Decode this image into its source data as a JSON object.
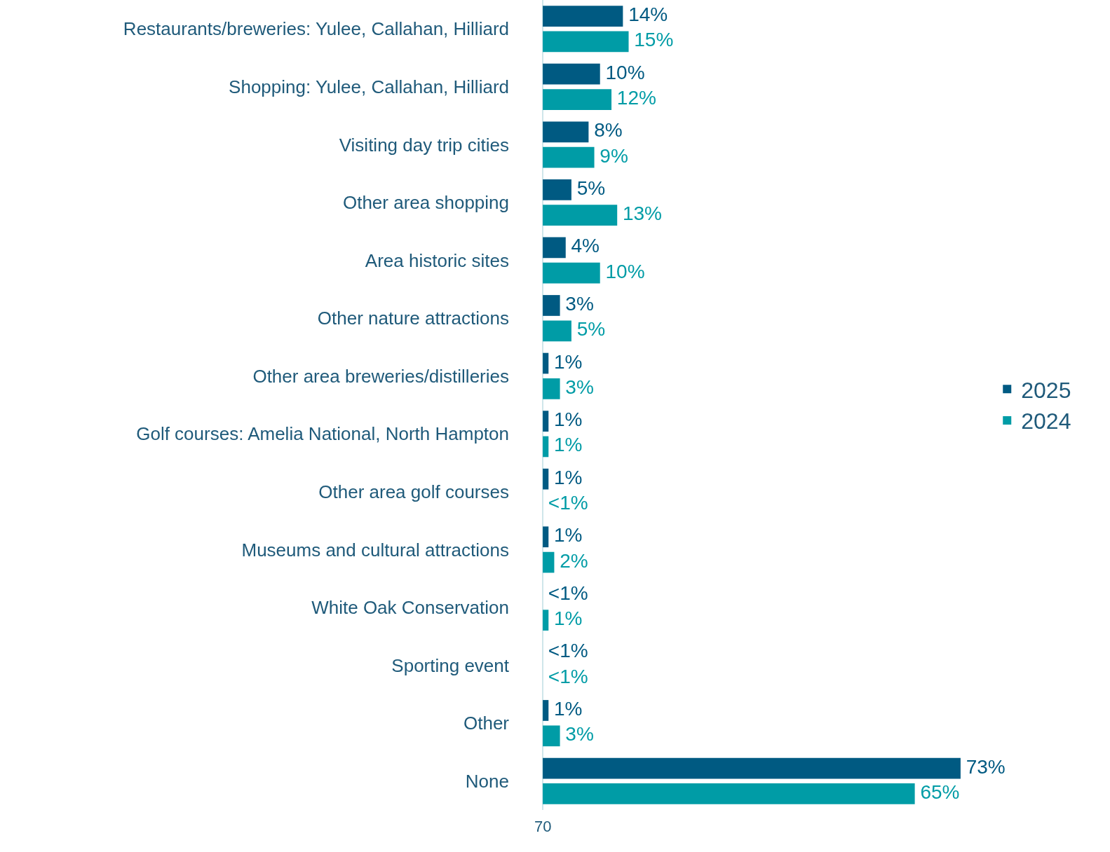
{
  "chart_data": {
    "type": "bar",
    "orientation": "horizontal",
    "categories": [
      "Restaurants/breweries: Yulee, Callahan, Hilliard",
      "Shopping: Yulee, Callahan, Hilliard",
      "Visiting day trip cities",
      "Other area shopping",
      "Area historic sites",
      "Other nature attractions",
      "Other area breweries/distilleries",
      "Golf courses: Amelia National, North Hampton",
      "Other area golf courses",
      "Museums and cultural attractions",
      "White Oak Conservation",
      "Sporting event",
      "Other",
      "None"
    ],
    "series": [
      {
        "name": "2025",
        "color": "#005a82",
        "values": [
          14,
          10,
          8,
          5,
          4,
          3,
          1,
          1,
          1,
          1,
          null,
          null,
          1,
          73
        ],
        "value_labels": [
          "14%",
          "10%",
          "8%",
          "5%",
          "4%",
          "3%",
          "1%",
          "1%",
          "1%",
          "1%",
          "<1%",
          "<1%",
          "1%",
          "73%"
        ]
      },
      {
        "name": "2024",
        "color": "#009ca6",
        "values": [
          15,
          12,
          9,
          13,
          10,
          5,
          3,
          1,
          null,
          2,
          1,
          null,
          3,
          65
        ],
        "value_labels": [
          "15%",
          "12%",
          "9%",
          "13%",
          "10%",
          "5%",
          "3%",
          "1%",
          "<1%",
          "2%",
          "1%",
          "<1%",
          "3%",
          "65%"
        ]
      }
    ],
    "tick_labels": "y",
    "legend": "right",
    "annotations": [
      "70"
    ]
  }
}
